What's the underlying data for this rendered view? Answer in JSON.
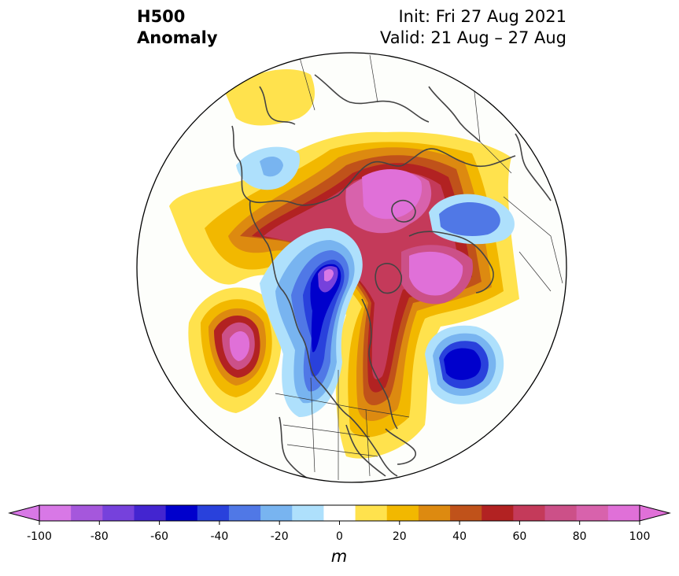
{
  "title": {
    "line1": "H500",
    "line2": "Anomaly"
  },
  "init": {
    "line1": "Init: Fri 27 Aug 2021",
    "line2": "Valid: 21 Aug – 27 Aug"
  },
  "colorbar": {
    "unit": "m",
    "ticks": [
      "-100",
      "-80",
      "-60",
      "-40",
      "-20",
      "0",
      "20",
      "40",
      "60",
      "80",
      "100"
    ],
    "colors": [
      "#d878e6",
      "#a557dc",
      "#7641dc",
      "#4325d0",
      "#0000cc",
      "#2941dc",
      "#5078e6",
      "#78b4f0",
      "#aee0fc",
      "#ffffff",
      "#ffe24d",
      "#f2b800",
      "#dd8a10",
      "#c0521a",
      "#b22222",
      "#c43a5a",
      "#cc5088",
      "#d862ac",
      "#e070d8"
    ],
    "extend_min_color": "#d878e6",
    "extend_max_color": "#e070d8"
  },
  "map": {
    "projection": "north-polar-stereographic",
    "field": "500 hPa geopotential height anomaly"
  }
}
